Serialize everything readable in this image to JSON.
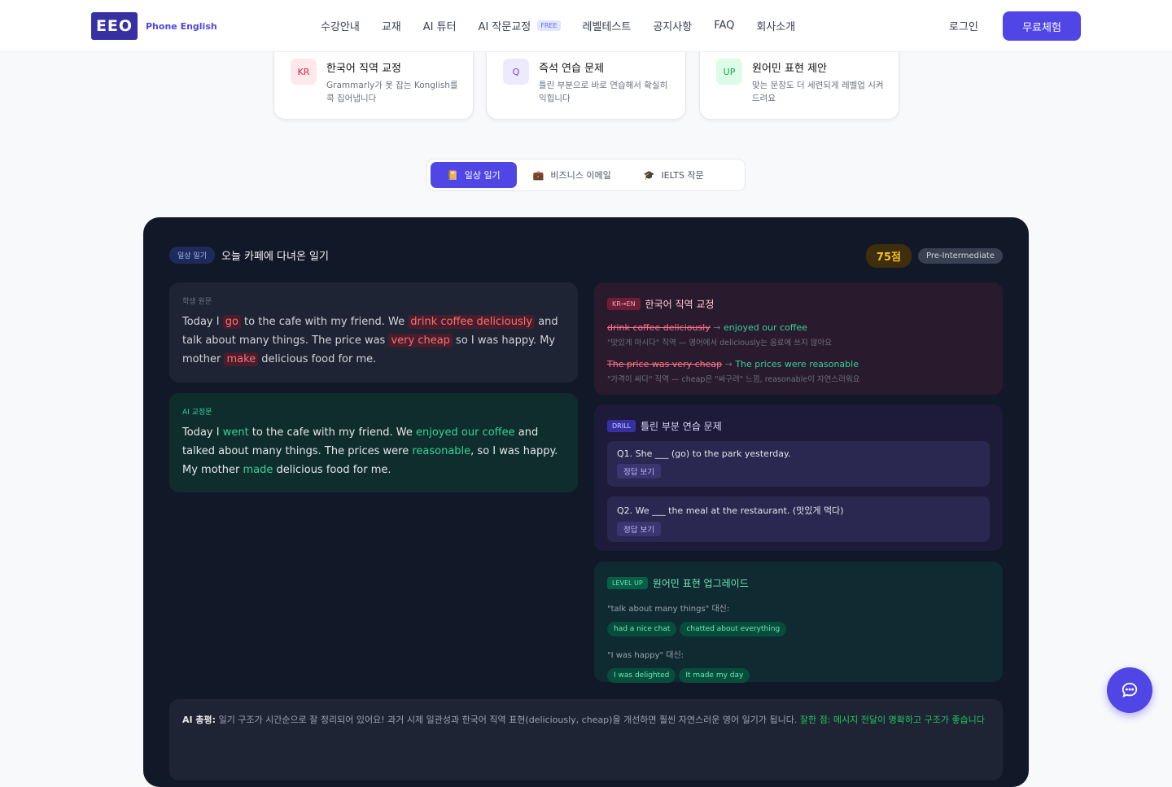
{
  "header": {
    "logo": "EEO",
    "brand": "Phone English",
    "nav": [
      "수강안내",
      "교재",
      "AI 튜터",
      "AI 작문교정",
      "레벨테스트",
      "공지사항",
      "FAQ",
      "회사소개"
    ],
    "free_badge": "FREE",
    "login": "로그인",
    "trial": "무료체험"
  },
  "features": [
    {
      "icon": "KR",
      "title": "한국어 직역 교정",
      "desc": "Grammarly가 못 잡는 Konglish를 콕 집어냅니다",
      "icon_bg": "#fde8ec",
      "icon_color": "#e11d48"
    },
    {
      "icon": "Q",
      "title": "즉석 연습 문제",
      "desc": "틀린 부분으로 바로 연습해서 확실히 익힙니다",
      "icon_bg": "#ede9fe",
      "icon_color": "#7c3aed"
    },
    {
      "icon": "UP",
      "title": "원어민 표현 제안",
      "desc": "맞는 문장도 더 세련되게 레벨업 시켜드려요",
      "icon_bg": "#dcfce7",
      "icon_color": "#16a34a"
    }
  ],
  "tabs": [
    {
      "icon": "📔",
      "label": "일상 일기"
    },
    {
      "icon": "💼",
      "label": "비즈니스 이메일"
    },
    {
      "icon": "🎓",
      "label": "IELTS 작문"
    }
  ],
  "demo": {
    "category": "일상 일기",
    "title": "오늘 카페에 다녀온 일기",
    "score": "75점",
    "level": "Pre-Intermediate",
    "original": {
      "label": "학생 원문",
      "segments": [
        [
          "Today I ",
          0
        ],
        [
          "go",
          1
        ],
        [
          " to the cafe with my friend. We ",
          0
        ],
        [
          "drink coffee deliciously",
          1
        ],
        [
          " and talk about many things. The price was ",
          0
        ],
        [
          "very cheap",
          1
        ],
        [
          " so I was happy. My mother ",
          0
        ],
        [
          "make",
          1
        ],
        [
          " delicious food for me.",
          0
        ]
      ]
    },
    "corrected": {
      "label": "AI 교정문",
      "segments": [
        [
          "Today I ",
          0
        ],
        [
          "went",
          1
        ],
        [
          " to the cafe with my friend. We ",
          0
        ],
        [
          "enjoyed our coffee",
          1
        ],
        [
          " and talked about many things. The prices were ",
          0
        ],
        [
          "reasonable",
          1
        ],
        [
          ", so I was happy. My mother ",
          0
        ],
        [
          "made",
          1
        ],
        [
          " delicious food for me.",
          0
        ]
      ]
    },
    "konglish": {
      "tag": "KR→EN",
      "title": "한국어 직역 교정",
      "items": [
        {
          "wrong": "drink coffee deliciously",
          "right": "enjoyed our coffee",
          "note": "\"맛있게 마시다\" 직역 — 영어에서 deliciously는 음료에 쓰지 않아요"
        },
        {
          "wrong": "The price was very cheap",
          "right": "The prices were reasonable",
          "note": "\"가격이 싸다\" 직역 — cheap은 \"싸구려\" 느낌, reasonable이 자연스러워요"
        }
      ]
    },
    "arrow": "→",
    "drill": {
      "tag": "DRILL",
      "title": "틀린 부분 연습 문제",
      "questions": [
        {
          "q": "Q1. She ___ (go) to the park yesterday.",
          "btn": "정답 보기"
        },
        {
          "q": "Q2. We ___ the meal at the restaurant. (맛있게 먹다)",
          "btn": "정답 보기"
        }
      ]
    },
    "levelup": {
      "tag": "LEVEL UP",
      "title": "원어민 표현 업그레이드",
      "groups": [
        {
          "label": "\"talk about many things\" 대신:",
          "chips": [
            "had a nice chat",
            "chatted about everything"
          ]
        },
        {
          "label": "\"I was happy\" 대신:",
          "chips": [
            "I was delighted",
            "It made my day"
          ]
        }
      ]
    },
    "summary": {
      "label": "AI 총평:",
      "text": " 일기 구조가 시간순으로 잘 정리되어 있어요! 과거 시제 일관성과 한국어 직역 표현(deliciously, cheap)을 개선하면 훨씬 자연스러운 영어 일기가 됩니다. ",
      "good": "잘한 점: 메시지 전달이 명확하고 구조가 좋습니다"
    }
  }
}
